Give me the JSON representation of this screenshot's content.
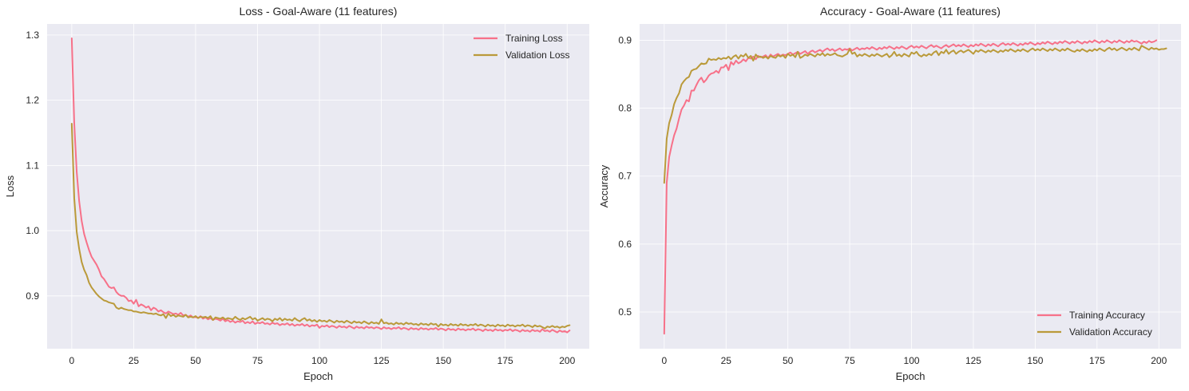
{
  "chart_data": [
    {
      "type": "line",
      "title": "Loss - Goal-Aware (11 features)",
      "xlabel": "Epoch",
      "ylabel": "Loss",
      "xlim": [
        -9.95,
        208.95
      ],
      "ylim": [
        0.819,
        1.317
      ],
      "xticks": [
        0,
        25,
        50,
        75,
        100,
        125,
        150,
        175,
        200
      ],
      "xtick_labels": [
        "0",
        "25",
        "50",
        "75",
        "100",
        "125",
        "150",
        "175",
        "200"
      ],
      "yticks": [
        0.9,
        1.0,
        1.1,
        1.2,
        1.3
      ],
      "ytick_labels": [
        "0.9",
        "1.0",
        "1.1",
        "1.2",
        "1.3"
      ],
      "grid": true,
      "legend_position": "top-right",
      "series": [
        {
          "name": "Training Loss",
          "color": "#f77189",
          "values": [
            1.295,
            1.165,
            1.09,
            1.045,
            1.015,
            0.995,
            0.982,
            0.97,
            0.96,
            0.954,
            0.948,
            0.94,
            0.93,
            0.926,
            0.92,
            0.914,
            0.912,
            0.913,
            0.906,
            0.902,
            0.9,
            0.9,
            0.897,
            0.892,
            0.893,
            0.888,
            0.894,
            0.884,
            0.887,
            0.885,
            0.882,
            0.884,
            0.878,
            0.882,
            0.88,
            0.876,
            0.878,
            0.875,
            0.873,
            0.876,
            0.874,
            0.872,
            0.873,
            0.871,
            0.874,
            0.87,
            0.871,
            0.868,
            0.87,
            0.867,
            0.868,
            0.866,
            0.869,
            0.865,
            0.867,
            0.864,
            0.866,
            0.863,
            0.865,
            0.864,
            0.862,
            0.865,
            0.861,
            0.863,
            0.86,
            0.862,
            0.859,
            0.861,
            0.86,
            0.862,
            0.858,
            0.86,
            0.858,
            0.861,
            0.857,
            0.859,
            0.858,
            0.86,
            0.857,
            0.858,
            0.856,
            0.859,
            0.857,
            0.858,
            0.855,
            0.857,
            0.856,
            0.858,
            0.855,
            0.857,
            0.854,
            0.856,
            0.855,
            0.857,
            0.854,
            0.856,
            0.853,
            0.855,
            0.854,
            0.856,
            0.851,
            0.854,
            0.853,
            0.855,
            0.852,
            0.854,
            0.853,
            0.851,
            0.854,
            0.852,
            0.853,
            0.851,
            0.854,
            0.852,
            0.85,
            0.853,
            0.851,
            0.852,
            0.85,
            0.853,
            0.851,
            0.852,
            0.85,
            0.852,
            0.851,
            0.849,
            0.852,
            0.85,
            0.851,
            0.849,
            0.851,
            0.85,
            0.852,
            0.849,
            0.851,
            0.85,
            0.848,
            0.851,
            0.849,
            0.85,
            0.848,
            0.851,
            0.849,
            0.85,
            0.848,
            0.85,
            0.849,
            0.851,
            0.848,
            0.85,
            0.849,
            0.847,
            0.85,
            0.848,
            0.849,
            0.847,
            0.85,
            0.848,
            0.849,
            0.847,
            0.849,
            0.848,
            0.85,
            0.847,
            0.849,
            0.848,
            0.846,
            0.849,
            0.847,
            0.848,
            0.846,
            0.849,
            0.847,
            0.848,
            0.846,
            0.848,
            0.847,
            0.849,
            0.846,
            0.848,
            0.847,
            0.845,
            0.848,
            0.846,
            0.847,
            0.845,
            0.848,
            0.846,
            0.847,
            0.845,
            0.849,
            0.846,
            0.847,
            0.845,
            0.848,
            0.846,
            0.844,
            0.847,
            0.845,
            0.846,
            0.844,
            0.847
          ]
        },
        {
          "name": "Validation Loss",
          "color": "#ba9a3a",
          "values": [
            1.164,
            1.05,
            0.998,
            0.972,
            0.952,
            0.94,
            0.932,
            0.92,
            0.913,
            0.908,
            0.903,
            0.899,
            0.896,
            0.893,
            0.892,
            0.89,
            0.889,
            0.888,
            0.882,
            0.88,
            0.882,
            0.88,
            0.879,
            0.878,
            0.878,
            0.876,
            0.876,
            0.875,
            0.874,
            0.875,
            0.874,
            0.873,
            0.873,
            0.872,
            0.873,
            0.871,
            0.87,
            0.872,
            0.866,
            0.873,
            0.869,
            0.871,
            0.868,
            0.87,
            0.869,
            0.868,
            0.871,
            0.867,
            0.868,
            0.867,
            0.869,
            0.866,
            0.868,
            0.867,
            0.868,
            0.866,
            0.869,
            0.863,
            0.867,
            0.866,
            0.865,
            0.867,
            0.864,
            0.866,
            0.865,
            0.864,
            0.868,
            0.865,
            0.863,
            0.866,
            0.864,
            0.866,
            0.868,
            0.864,
            0.866,
            0.862,
            0.864,
            0.866,
            0.863,
            0.865,
            0.864,
            0.861,
            0.865,
            0.863,
            0.866,
            0.862,
            0.865,
            0.863,
            0.864,
            0.862,
            0.866,
            0.863,
            0.861,
            0.864,
            0.866,
            0.862,
            0.864,
            0.861,
            0.863,
            0.86,
            0.863,
            0.861,
            0.862,
            0.86,
            0.863,
            0.861,
            0.859,
            0.862,
            0.86,
            0.861,
            0.859,
            0.862,
            0.86,
            0.858,
            0.861,
            0.859,
            0.86,
            0.858,
            0.861,
            0.859,
            0.857,
            0.86,
            0.858,
            0.859,
            0.857,
            0.864,
            0.858,
            0.859,
            0.857,
            0.858,
            0.856,
            0.859,
            0.857,
            0.858,
            0.856,
            0.859,
            0.857,
            0.858,
            0.856,
            0.857,
            0.855,
            0.858,
            0.856,
            0.857,
            0.855,
            0.858,
            0.856,
            0.857,
            0.853,
            0.857,
            0.855,
            0.856,
            0.854,
            0.857,
            0.855,
            0.856,
            0.854,
            0.857,
            0.855,
            0.856,
            0.854,
            0.856,
            0.855,
            0.857,
            0.854,
            0.856,
            0.855,
            0.853,
            0.856,
            0.854,
            0.855,
            0.853,
            0.856,
            0.854,
            0.855,
            0.853,
            0.856,
            0.854,
            0.855,
            0.853,
            0.855,
            0.854,
            0.856,
            0.853,
            0.855,
            0.854,
            0.852,
            0.855,
            0.853,
            0.854,
            0.852,
            0.85,
            0.853,
            0.852,
            0.854,
            0.852,
            0.853,
            0.851,
            0.853,
            0.852,
            0.854,
            0.855
          ]
        }
      ]
    },
    {
      "type": "line",
      "title": "Accuracy - Goal-Aware (11 features)",
      "xlabel": "Epoch",
      "ylabel": "Accuracy",
      "xlim": [
        -9.95,
        208.95
      ],
      "ylim": [
        0.446,
        0.924
      ],
      "xticks": [
        0,
        25,
        50,
        75,
        100,
        125,
        150,
        175,
        200
      ],
      "xtick_labels": [
        "0",
        "25",
        "50",
        "75",
        "100",
        "125",
        "150",
        "175",
        "200"
      ],
      "yticks": [
        0.5,
        0.6,
        0.7,
        0.8,
        0.9
      ],
      "ytick_labels": [
        "0.5",
        "0.6",
        "0.7",
        "0.8",
        "0.9"
      ],
      "grid": true,
      "legend_position": "bottom-right",
      "series": [
        {
          "name": "Training Accuracy",
          "color": "#f77189",
          "values": [
            0.468,
            0.69,
            0.728,
            0.745,
            0.76,
            0.77,
            0.785,
            0.798,
            0.804,
            0.812,
            0.81,
            0.826,
            0.826,
            0.834,
            0.841,
            0.845,
            0.838,
            0.842,
            0.848,
            0.851,
            0.852,
            0.855,
            0.852,
            0.86,
            0.86,
            0.864,
            0.856,
            0.868,
            0.864,
            0.87,
            0.866,
            0.868,
            0.872,
            0.869,
            0.874,
            0.873,
            0.876,
            0.872,
            0.877,
            0.875,
            0.876,
            0.878,
            0.874,
            0.879,
            0.876,
            0.878,
            0.88,
            0.877,
            0.879,
            0.878,
            0.88,
            0.882,
            0.879,
            0.881,
            0.883,
            0.88,
            0.882,
            0.884,
            0.88,
            0.883,
            0.885,
            0.882,
            0.884,
            0.886,
            0.883,
            0.886,
            0.888,
            0.885,
            0.887,
            0.884,
            0.886,
            0.888,
            0.885,
            0.887,
            0.886,
            0.888,
            0.885,
            0.887,
            0.889,
            0.886,
            0.888,
            0.887,
            0.889,
            0.887,
            0.89,
            0.888,
            0.886,
            0.889,
            0.887,
            0.89,
            0.888,
            0.891,
            0.889,
            0.887,
            0.89,
            0.888,
            0.891,
            0.889,
            0.887,
            0.89,
            0.892,
            0.889,
            0.891,
            0.889,
            0.892,
            0.89,
            0.888,
            0.891,
            0.893,
            0.89,
            0.892,
            0.89,
            0.888,
            0.891,
            0.893,
            0.89,
            0.892,
            0.894,
            0.891,
            0.893,
            0.891,
            0.894,
            0.892,
            0.89,
            0.893,
            0.891,
            0.894,
            0.892,
            0.895,
            0.893,
            0.891,
            0.894,
            0.892,
            0.895,
            0.893,
            0.891,
            0.894,
            0.896,
            0.893,
            0.895,
            0.893,
            0.896,
            0.894,
            0.892,
            0.895,
            0.893,
            0.896,
            0.894,
            0.897,
            0.895,
            0.893,
            0.896,
            0.894,
            0.897,
            0.895,
            0.898,
            0.896,
            0.894,
            0.897,
            0.895,
            0.898,
            0.896,
            0.899,
            0.897,
            0.895,
            0.898,
            0.896,
            0.899,
            0.897,
            0.895,
            0.898,
            0.896,
            0.899,
            0.897,
            0.9,
            0.898,
            0.896,
            0.899,
            0.897,
            0.9,
            0.898,
            0.896,
            0.899,
            0.897,
            0.9,
            0.898,
            0.896,
            0.899,
            0.897,
            0.9,
            0.898,
            0.899,
            0.897,
            0.895,
            0.898,
            0.896,
            0.899,
            0.897,
            0.898,
            0.9
          ]
        },
        {
          "name": "Validation Accuracy",
          "color": "#ba9a3a",
          "values": [
            0.69,
            0.755,
            0.778,
            0.79,
            0.806,
            0.815,
            0.822,
            0.835,
            0.84,
            0.844,
            0.846,
            0.855,
            0.857,
            0.858,
            0.862,
            0.866,
            0.865,
            0.866,
            0.873,
            0.871,
            0.872,
            0.871,
            0.874,
            0.872,
            0.874,
            0.873,
            0.876,
            0.872,
            0.876,
            0.878,
            0.873,
            0.878,
            0.876,
            0.88,
            0.874,
            0.877,
            0.87,
            0.879,
            0.875,
            0.876,
            0.874,
            0.876,
            0.873,
            0.877,
            0.875,
            0.874,
            0.878,
            0.876,
            0.878,
            0.874,
            0.88,
            0.877,
            0.879,
            0.875,
            0.883,
            0.874,
            0.876,
            0.879,
            0.877,
            0.88,
            0.878,
            0.876,
            0.88,
            0.878,
            0.881,
            0.877,
            0.88,
            0.878,
            0.879,
            0.881,
            0.878,
            0.877,
            0.876,
            0.878,
            0.88,
            0.887,
            0.88,
            0.882,
            0.876,
            0.879,
            0.877,
            0.88,
            0.878,
            0.876,
            0.879,
            0.877,
            0.88,
            0.878,
            0.876,
            0.878,
            0.88,
            0.875,
            0.878,
            0.883,
            0.877,
            0.879,
            0.876,
            0.88,
            0.878,
            0.876,
            0.882,
            0.88,
            0.883,
            0.878,
            0.876,
            0.879,
            0.877,
            0.88,
            0.878,
            0.882,
            0.884,
            0.878,
            0.883,
            0.881,
            0.886,
            0.88,
            0.883,
            0.885,
            0.88,
            0.883,
            0.885,
            0.882,
            0.884,
            0.886,
            0.883,
            0.88,
            0.885,
            0.883,
            0.886,
            0.884,
            0.882,
            0.885,
            0.883,
            0.886,
            0.884,
            0.882,
            0.885,
            0.883,
            0.886,
            0.884,
            0.887,
            0.885,
            0.883,
            0.886,
            0.884,
            0.887,
            0.885,
            0.883,
            0.886,
            0.888,
            0.885,
            0.887,
            0.885,
            0.888,
            0.886,
            0.884,
            0.887,
            0.885,
            0.888,
            0.886,
            0.884,
            0.887,
            0.885,
            0.888,
            0.886,
            0.884,
            0.883,
            0.886,
            0.884,
            0.887,
            0.885,
            0.883,
            0.886,
            0.884,
            0.887,
            0.885,
            0.888,
            0.886,
            0.884,
            0.887,
            0.889,
            0.886,
            0.888,
            0.885,
            0.887,
            0.889,
            0.887,
            0.885,
            0.888,
            0.886,
            0.889,
            0.887,
            0.885,
            0.892,
            0.89,
            0.888,
            0.886,
            0.889,
            0.887,
            0.888,
            0.886,
            0.887,
            0.887,
            0.888
          ]
        }
      ]
    }
  ]
}
